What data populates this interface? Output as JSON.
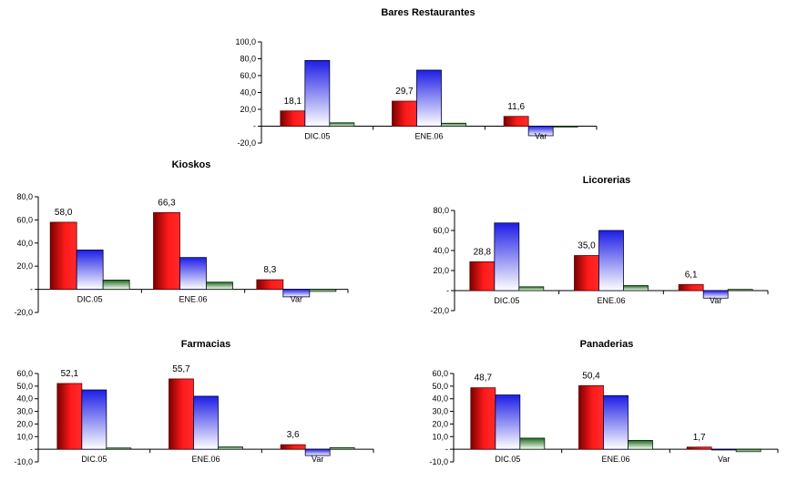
{
  "chart_data": [
    {
      "type": "bar",
      "title": "Bares Restaurantes",
      "categories": [
        "DIC.05",
        "ENE.06",
        "Var"
      ],
      "ylim": [
        -20,
        100
      ],
      "yticks": [
        "100,0",
        "80,0",
        "60,0",
        "40,0",
        "20,0",
        "-",
        "-20,0"
      ],
      "yvalues": [
        100,
        80,
        60,
        40,
        20,
        0,
        -20
      ],
      "series": [
        {
          "values": [
            18.1,
            29.7,
            11.6
          ],
          "labels": [
            "18,1",
            "29,7",
            "11,6"
          ]
        },
        {
          "values": [
            78.0,
            66.5,
            -11.3
          ]
        },
        {
          "values": [
            4.0,
            3.5,
            -1.0
          ]
        }
      ],
      "grid": false,
      "legend": "none"
    },
    {
      "type": "bar",
      "title": "Kioskos",
      "categories": [
        "DIC.05",
        "ENE.06",
        "Var"
      ],
      "ylim": [
        -20,
        80
      ],
      "yticks": [
        "80,0",
        "60,0",
        "40,0",
        "20,0",
        "-",
        "-20,0"
      ],
      "yvalues": [
        80,
        60,
        40,
        20,
        0,
        -20
      ],
      "series": [
        {
          "values": [
            58.0,
            66.3,
            8.3
          ],
          "labels": [
            "58,0",
            "66,3",
            "8,3"
          ]
        },
        {
          "values": [
            34.0,
            27.5,
            -6.5
          ]
        },
        {
          "values": [
            8.0,
            6.2,
            -1.8
          ]
        }
      ],
      "grid": false,
      "legend": "none"
    },
    {
      "type": "bar",
      "title": "Licorerias",
      "categories": [
        "DIC.05",
        "ENE.06",
        "Var"
      ],
      "ylim": [
        -20,
        80
      ],
      "yticks": [
        "80,0",
        "60,0",
        "40,0",
        "20,0",
        "-",
        "-20,0"
      ],
      "yvalues": [
        80,
        60,
        40,
        20,
        0,
        -20
      ],
      "series": [
        {
          "values": [
            28.8,
            35.0,
            6.1
          ],
          "labels": [
            "28,8",
            "35,0",
            "6,1"
          ]
        },
        {
          "values": [
            67.5,
            60.0,
            -7.5
          ]
        },
        {
          "values": [
            3.8,
            5.0,
            1.2
          ]
        }
      ],
      "grid": false,
      "legend": "none"
    },
    {
      "type": "bar",
      "title": "Farmacias",
      "categories": [
        "DIC.05",
        "ENE.06",
        "Var"
      ],
      "ylim": [
        -10,
        60
      ],
      "yticks": [
        "60,0",
        "50,0",
        "40,0",
        "30,0",
        "20,0",
        "10,0",
        "-",
        "-10,0"
      ],
      "yvalues": [
        60,
        50,
        40,
        30,
        20,
        10,
        0,
        -10
      ],
      "series": [
        {
          "values": [
            52.1,
            55.7,
            3.6
          ],
          "labels": [
            "52,1",
            "55,7",
            "3,6"
          ]
        },
        {
          "values": [
            47.0,
            42.0,
            -5.0
          ]
        },
        {
          "values": [
            1.0,
            1.8,
            1.2
          ]
        }
      ],
      "grid": false,
      "legend": "none"
    },
    {
      "type": "bar",
      "title": "Panaderias",
      "categories": [
        "DIC.05",
        "ENE.06",
        "Var"
      ],
      "ylim": [
        -10,
        60
      ],
      "yticks": [
        "60,0",
        "50,0",
        "40,0",
        "30,0",
        "20,0",
        "10,0",
        "-",
        "-10,0"
      ],
      "yvalues": [
        60,
        50,
        40,
        30,
        20,
        10,
        0,
        -10
      ],
      "series": [
        {
          "values": [
            48.7,
            50.4,
            1.7
          ],
          "labels": [
            "48,7",
            "50,4",
            "1,7"
          ]
        },
        {
          "values": [
            43.0,
            42.5,
            -0.5
          ]
        },
        {
          "values": [
            8.8,
            7.0,
            -1.9
          ]
        }
      ],
      "grid": false,
      "legend": "none"
    }
  ],
  "colors": {
    "series1_dark": "#7a0000",
    "series1_light": "#ff1a1a",
    "series2_dark": "#1e1ee6",
    "series2_light": "#ffffff",
    "series3_dark": "#1e6a1e",
    "series3_light": "#ffffff"
  }
}
